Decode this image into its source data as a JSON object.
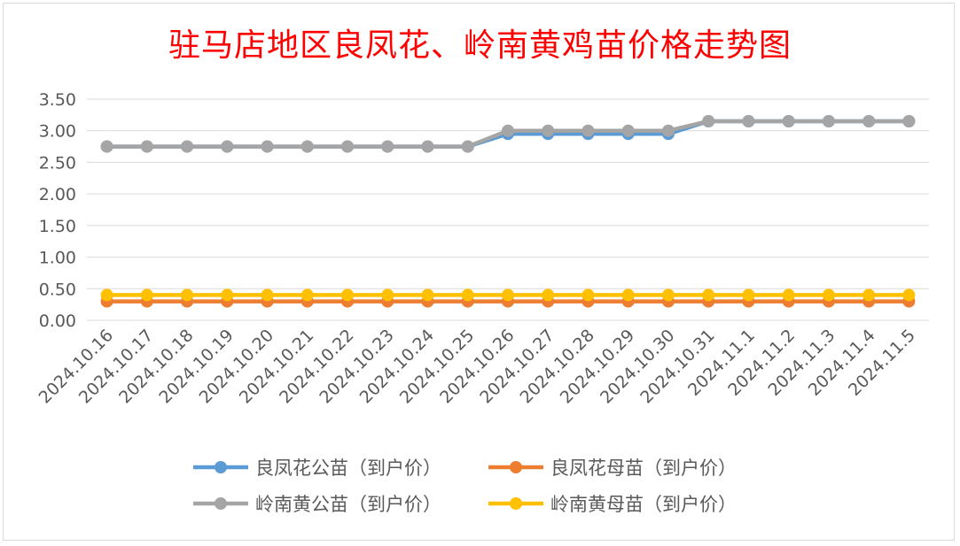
{
  "chart_data": {
    "type": "line",
    "title": "驻马店地区良凤花、岭南黄鸡苗价格走势图",
    "xlabel": "",
    "ylabel": "",
    "categories": [
      "2024.10.16",
      "2024.10.17",
      "2024.10.18",
      "2024.10.19",
      "2024.10.20",
      "2024.10.21",
      "2024.10.22",
      "2024.10.23",
      "2024.10.24",
      "2024.10.25",
      "2024.10.26",
      "2024.10.27",
      "2024.10.28",
      "2024.10.29",
      "2024.10.30",
      "2024.10.31",
      "2024.11.1",
      "2024.11.2",
      "2024.11.3",
      "2024.11.4",
      "2024.11.5"
    ],
    "ylim": [
      0,
      3.5
    ],
    "yticks": [
      "0.00",
      "0.50",
      "1.00",
      "1.50",
      "2.00",
      "2.50",
      "3.00",
      "3.50"
    ],
    "grid": true,
    "legend_position": "bottom",
    "series": [
      {
        "name": "良凤花公苗（到户价）",
        "color": "#5b9bd5",
        "values": [
          2.75,
          2.75,
          2.75,
          2.75,
          2.75,
          2.75,
          2.75,
          2.75,
          2.75,
          2.75,
          2.95,
          2.95,
          2.95,
          2.95,
          2.95,
          3.15,
          3.15,
          3.15,
          3.15,
          3.15,
          3.15
        ]
      },
      {
        "name": "良凤花母苗（到户价）",
        "color": "#ed7d31",
        "values": [
          0.3,
          0.3,
          0.3,
          0.3,
          0.3,
          0.3,
          0.3,
          0.3,
          0.3,
          0.3,
          0.3,
          0.3,
          0.3,
          0.3,
          0.3,
          0.3,
          0.3,
          0.3,
          0.3,
          0.3,
          0.3
        ]
      },
      {
        "name": "岭南黄公苗（到户价）",
        "color": "#a5a5a5",
        "values": [
          2.75,
          2.75,
          2.75,
          2.75,
          2.75,
          2.75,
          2.75,
          2.75,
          2.75,
          2.75,
          3.0,
          3.0,
          3.0,
          3.0,
          3.0,
          3.15,
          3.15,
          3.15,
          3.15,
          3.15,
          3.15
        ]
      },
      {
        "name": "岭南黄母苗（到户价）",
        "color": "#ffc000",
        "values": [
          0.4,
          0.4,
          0.4,
          0.4,
          0.4,
          0.4,
          0.4,
          0.4,
          0.4,
          0.4,
          0.4,
          0.4,
          0.4,
          0.4,
          0.4,
          0.4,
          0.4,
          0.4,
          0.4,
          0.4,
          0.4
        ]
      }
    ]
  }
}
